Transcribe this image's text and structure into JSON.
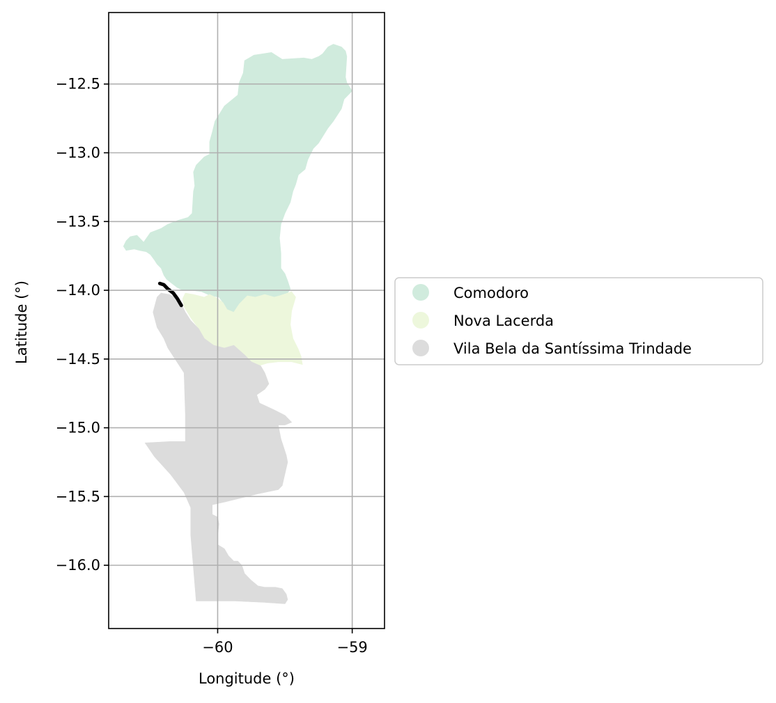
{
  "chart_data": {
    "type": "map",
    "xlabel": "Longitude (°)",
    "ylabel": "Latitude (°)",
    "xlim": [
      -60.81,
      -58.76
    ],
    "ylim": [
      -16.46,
      -11.98
    ],
    "xticks": [
      {
        "value": -60,
        "label": "−60"
      },
      {
        "value": -59,
        "label": "−59"
      }
    ],
    "yticks": [
      {
        "value": -12.5,
        "label": "−12.5"
      },
      {
        "value": -13.0,
        "label": "−13.0"
      },
      {
        "value": -13.5,
        "label": "−13.5"
      },
      {
        "value": -14.0,
        "label": "−14.0"
      },
      {
        "value": -14.5,
        "label": "−14.5"
      },
      {
        "value": -15.0,
        "label": "−15.0"
      },
      {
        "value": -15.5,
        "label": "−15.5"
      },
      {
        "value": -16.0,
        "label": "−16.0"
      }
    ],
    "grid": true,
    "legend_position": "right",
    "regions": [
      {
        "name": "Comodoro",
        "color": "#d0ebdd",
        "polygon": [
          [
            -60.55,
            -13.65
          ],
          [
            -60.5,
            -13.58
          ],
          [
            -60.42,
            -13.55
          ],
          [
            -60.37,
            -13.52
          ],
          [
            -60.29,
            -13.49
          ],
          [
            -60.22,
            -13.47
          ],
          [
            -60.19,
            -13.44
          ],
          [
            -60.18,
            -13.28
          ],
          [
            -60.17,
            -13.24
          ],
          [
            -60.18,
            -13.14
          ],
          [
            -60.16,
            -13.09
          ],
          [
            -60.1,
            -13.03
          ],
          [
            -60.06,
            -13.01
          ],
          [
            -60.06,
            -12.92
          ],
          [
            -60.04,
            -12.85
          ],
          [
            -60.02,
            -12.77
          ],
          [
            -59.95,
            -12.66
          ],
          [
            -59.85,
            -12.58
          ],
          [
            -59.84,
            -12.49
          ],
          [
            -59.81,
            -12.42
          ],
          [
            -59.8,
            -12.33
          ],
          [
            -59.73,
            -12.29
          ],
          [
            -59.6,
            -12.27
          ],
          [
            -59.52,
            -12.32
          ],
          [
            -59.36,
            -12.31
          ],
          [
            -59.3,
            -12.32
          ],
          [
            -59.25,
            -12.3
          ],
          [
            -59.22,
            -12.28
          ],
          [
            -59.18,
            -12.23
          ],
          [
            -59.14,
            -12.21
          ],
          [
            -59.08,
            -12.23
          ],
          [
            -59.05,
            -12.26
          ],
          [
            -59.04,
            -12.3
          ],
          [
            -59.05,
            -12.45
          ],
          [
            -59.04,
            -12.49
          ],
          [
            -59.0,
            -12.55
          ],
          [
            -59.06,
            -12.61
          ],
          [
            -59.08,
            -12.68
          ],
          [
            -59.14,
            -12.77
          ],
          [
            -59.18,
            -12.82
          ],
          [
            -59.25,
            -12.93
          ],
          [
            -59.29,
            -12.97
          ],
          [
            -59.33,
            -13.05
          ],
          [
            -59.35,
            -13.12
          ],
          [
            -59.4,
            -13.16
          ],
          [
            -59.42,
            -13.23
          ],
          [
            -59.44,
            -13.28
          ],
          [
            -59.46,
            -13.36
          ],
          [
            -59.5,
            -13.44
          ],
          [
            -59.53,
            -13.52
          ],
          [
            -59.54,
            -13.62
          ],
          [
            -59.53,
            -13.73
          ],
          [
            -59.53,
            -13.84
          ],
          [
            -59.5,
            -13.88
          ],
          [
            -59.48,
            -13.93
          ],
          [
            -59.46,
            -13.99
          ],
          [
            -59.48,
            -14.02
          ],
          [
            -59.54,
            -14.04
          ],
          [
            -59.58,
            -14.05
          ],
          [
            -59.65,
            -14.03
          ],
          [
            -59.72,
            -14.05
          ],
          [
            -59.78,
            -14.04
          ],
          [
            -59.84,
            -14.1
          ],
          [
            -59.88,
            -14.16
          ],
          [
            -59.93,
            -14.14
          ],
          [
            -59.96,
            -14.09
          ],
          [
            -59.99,
            -14.05
          ],
          [
            -60.05,
            -14.04
          ],
          [
            -60.12,
            -14.01
          ],
          [
            -60.2,
            -14.0
          ],
          [
            -60.26,
            -14.0
          ],
          [
            -60.3,
            -13.98
          ],
          [
            -60.34,
            -13.95
          ],
          [
            -60.38,
            -13.92
          ],
          [
            -60.4,
            -13.89
          ],
          [
            -60.42,
            -13.84
          ],
          [
            -60.45,
            -13.81
          ],
          [
            -60.47,
            -13.78
          ],
          [
            -60.5,
            -13.74
          ],
          [
            -60.53,
            -13.72
          ],
          [
            -60.58,
            -13.71
          ],
          [
            -60.62,
            -13.7
          ],
          [
            -60.68,
            -13.71
          ],
          [
            -60.7,
            -13.68
          ],
          [
            -60.68,
            -13.64
          ],
          [
            -60.65,
            -13.61
          ],
          [
            -60.6,
            -13.6
          ],
          [
            -60.57,
            -13.63
          ]
        ]
      },
      {
        "name": "Nova Lacerda",
        "color": "#edf7dc",
        "polygon": [
          [
            -60.24,
            -14.02
          ],
          [
            -60.18,
            -14.03
          ],
          [
            -60.1,
            -14.05
          ],
          [
            -60.06,
            -14.03
          ],
          [
            -60.0,
            -14.06
          ],
          [
            -59.96,
            -14.09
          ],
          [
            -59.93,
            -14.14
          ],
          [
            -59.88,
            -14.16
          ],
          [
            -59.84,
            -14.1
          ],
          [
            -59.78,
            -14.04
          ],
          [
            -59.72,
            -14.05
          ],
          [
            -59.65,
            -14.03
          ],
          [
            -59.58,
            -14.05
          ],
          [
            -59.54,
            -14.04
          ],
          [
            -59.48,
            -14.02
          ],
          [
            -59.45,
            -14.01
          ],
          [
            -59.42,
            -14.05
          ],
          [
            -59.45,
            -14.15
          ],
          [
            -59.46,
            -14.25
          ],
          [
            -59.44,
            -14.35
          ],
          [
            -59.4,
            -14.43
          ],
          [
            -59.38,
            -14.48
          ],
          [
            -59.37,
            -14.54
          ],
          [
            -59.45,
            -14.52
          ],
          [
            -59.55,
            -14.52
          ],
          [
            -59.63,
            -14.53
          ],
          [
            -59.7,
            -14.55
          ],
          [
            -59.72,
            -14.65
          ],
          [
            -59.75,
            -14.72
          ],
          [
            -59.74,
            -14.78
          ],
          [
            -59.69,
            -14.82
          ],
          [
            -59.71,
            -14.76
          ],
          [
            -59.65,
            -14.72
          ],
          [
            -59.62,
            -14.68
          ],
          [
            -59.65,
            -14.6
          ],
          [
            -59.68,
            -14.55
          ],
          [
            -59.75,
            -14.52
          ],
          [
            -59.8,
            -14.47
          ],
          [
            -59.88,
            -14.4
          ],
          [
            -59.95,
            -14.42
          ],
          [
            -60.03,
            -14.4
          ],
          [
            -60.1,
            -14.35
          ],
          [
            -60.14,
            -14.28
          ],
          [
            -60.2,
            -14.2
          ],
          [
            -60.25,
            -14.12
          ],
          [
            -60.26,
            -14.06
          ]
        ]
      },
      {
        "name": "Vila Bela da Santíssima Trindade",
        "color": "#dcdcdc",
        "polygon": [
          [
            -60.42,
            -14.02
          ],
          [
            -60.36,
            -14.03
          ],
          [
            -60.32,
            -14.05
          ],
          [
            -60.28,
            -14.08
          ],
          [
            -60.24,
            -14.16
          ],
          [
            -60.2,
            -14.22
          ],
          [
            -60.14,
            -14.28
          ],
          [
            -60.1,
            -14.35
          ],
          [
            -60.03,
            -14.4
          ],
          [
            -59.95,
            -14.42
          ],
          [
            -59.88,
            -14.4
          ],
          [
            -59.8,
            -14.47
          ],
          [
            -59.75,
            -14.52
          ],
          [
            -59.68,
            -14.55
          ],
          [
            -59.65,
            -14.6
          ],
          [
            -59.62,
            -14.68
          ],
          [
            -59.65,
            -14.72
          ],
          [
            -59.71,
            -14.76
          ],
          [
            -59.69,
            -14.82
          ],
          [
            -59.58,
            -14.87
          ],
          [
            -59.5,
            -14.91
          ],
          [
            -59.45,
            -14.96
          ],
          [
            -59.5,
            -14.98
          ],
          [
            -59.55,
            -14.98
          ],
          [
            -59.53,
            -15.08
          ],
          [
            -59.49,
            -15.2
          ],
          [
            -59.48,
            -15.25
          ],
          [
            -59.52,
            -15.42
          ],
          [
            -59.55,
            -15.45
          ],
          [
            -59.7,
            -15.48
          ],
          [
            -59.95,
            -15.54
          ],
          [
            -60.04,
            -15.56
          ],
          [
            -60.04,
            -15.63
          ],
          [
            -60.0,
            -15.65
          ],
          [
            -59.99,
            -15.7
          ],
          [
            -60.0,
            -15.78
          ],
          [
            -60.0,
            -15.85
          ],
          [
            -59.95,
            -15.88
          ],
          [
            -59.92,
            -15.93
          ],
          [
            -59.88,
            -15.97
          ],
          [
            -59.85,
            -15.97
          ],
          [
            -59.82,
            -16.0
          ],
          [
            -59.8,
            -16.06
          ],
          [
            -59.75,
            -16.11
          ],
          [
            -59.7,
            -16.15
          ],
          [
            -59.65,
            -16.16
          ],
          [
            -59.57,
            -16.16
          ],
          [
            -59.52,
            -16.17
          ],
          [
            -59.49,
            -16.21
          ],
          [
            -59.48,
            -16.25
          ],
          [
            -59.5,
            -16.28
          ],
          [
            -59.65,
            -16.27
          ],
          [
            -59.87,
            -16.26
          ],
          [
            -60.16,
            -16.26
          ],
          [
            -60.2,
            -15.78
          ],
          [
            -60.2,
            -15.58
          ],
          [
            -60.25,
            -15.47
          ],
          [
            -60.35,
            -15.34
          ],
          [
            -60.47,
            -15.21
          ],
          [
            -60.54,
            -15.11
          ],
          [
            -60.35,
            -15.1
          ],
          [
            -60.24,
            -15.1
          ],
          [
            -60.24,
            -14.9
          ],
          [
            -60.25,
            -14.6
          ],
          [
            -60.37,
            -14.42
          ],
          [
            -60.4,
            -14.35
          ],
          [
            -60.45,
            -14.27
          ],
          [
            -60.48,
            -14.16
          ],
          [
            -60.45,
            -14.05
          ]
        ]
      }
    ],
    "highlight": {
      "color": "#000000",
      "polyline": [
        [
          -60.43,
          -13.95
        ],
        [
          -60.4,
          -13.96
        ],
        [
          -60.37,
          -13.99
        ],
        [
          -60.33,
          -14.02
        ],
        [
          -60.3,
          -14.06
        ],
        [
          -60.27,
          -14.11
        ]
      ]
    }
  }
}
